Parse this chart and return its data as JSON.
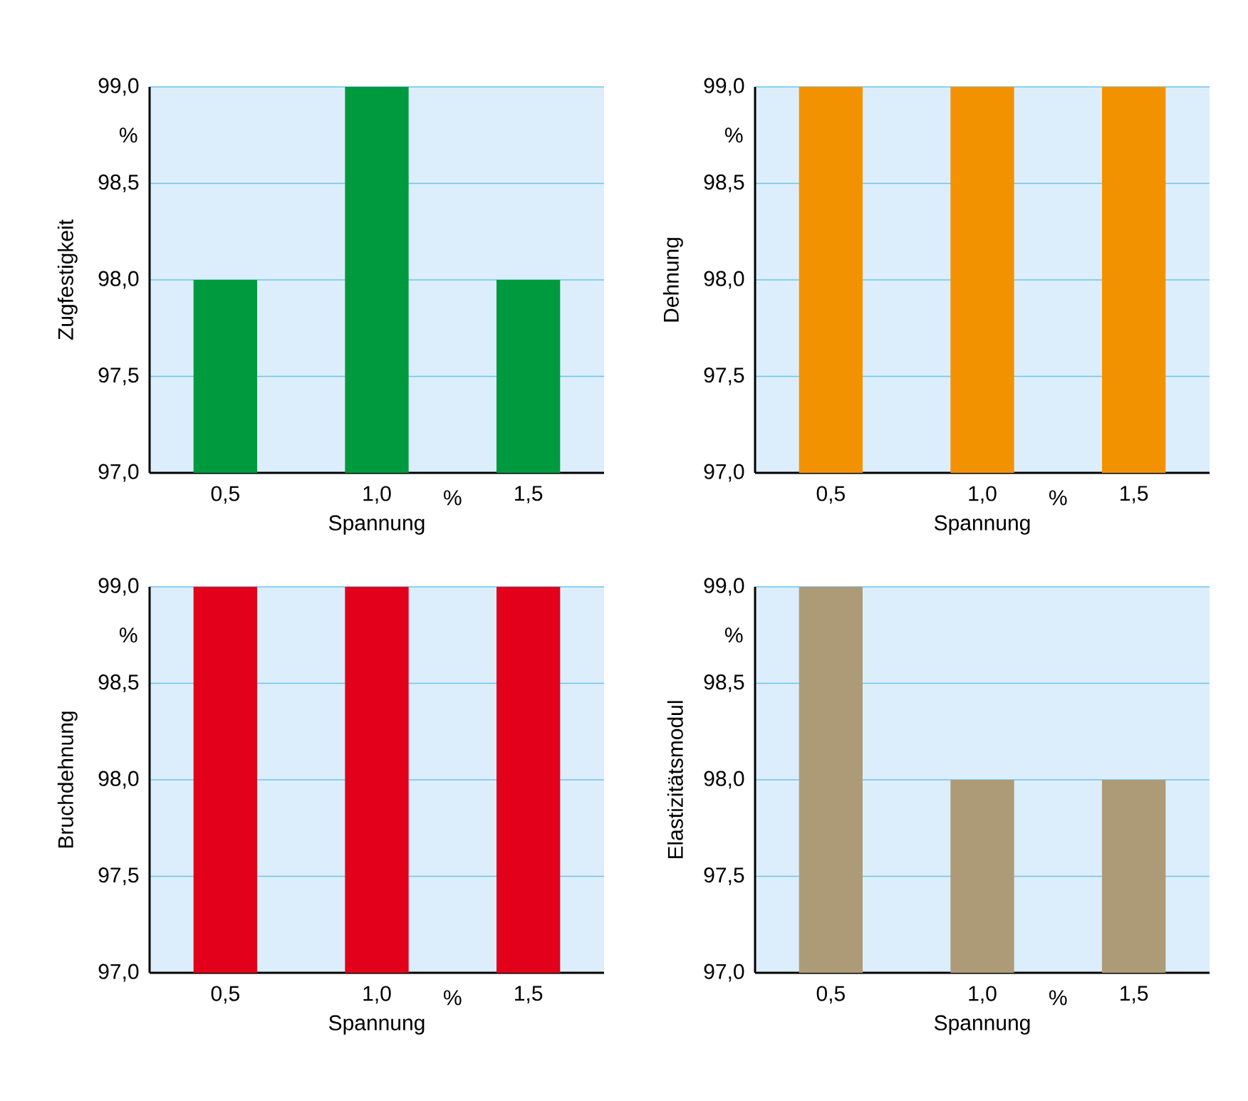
{
  "chart_data": [
    {
      "type": "bar",
      "categories": [
        "0,5",
        "1,0",
        "1,5"
      ],
      "values": [
        98,
        99,
        98
      ],
      "color": "#009a3e",
      "xlabel": "Spannung",
      "ylabel": "Zugfestigkeit",
      "ylim": [
        97,
        99
      ],
      "yticks": [
        {
          "value": 97,
          "label": "97,0"
        },
        {
          "value": 97.5,
          "label": "97,5"
        },
        {
          "value": 98,
          "label": "98,0"
        },
        {
          "value": 98.5,
          "label": "98,5"
        },
        {
          "value": 99,
          "label": "99,0"
        }
      ],
      "grid": "y",
      "annotations": [
        "%",
        "%"
      ]
    },
    {
      "type": "bar",
      "categories": [
        "0,5",
        "1,0",
        "1,5"
      ],
      "values": [
        99,
        99,
        99
      ],
      "color": "#f39200",
      "xlabel": "Spannung",
      "ylabel": "Dehnung",
      "ylim": [
        97,
        99
      ],
      "yticks": [
        {
          "value": 97,
          "label": "97,0"
        },
        {
          "value": 97.5,
          "label": "97,5"
        },
        {
          "value": 98,
          "label": "98,0"
        },
        {
          "value": 98.5,
          "label": "98,5"
        },
        {
          "value": 99,
          "label": "99,0"
        }
      ],
      "grid": "y",
      "annotations": [
        "%",
        "%"
      ]
    },
    {
      "type": "bar",
      "categories": [
        "0,5",
        "1,0",
        "1,5"
      ],
      "values": [
        99,
        99,
        99
      ],
      "color": "#e2001a",
      "xlabel": "Spannung",
      "ylabel": "Bruchdehnung",
      "ylim": [
        97,
        99
      ],
      "yticks": [
        {
          "value": 97,
          "label": "97,0"
        },
        {
          "value": 97.5,
          "label": "97,5"
        },
        {
          "value": 98,
          "label": "98,0"
        },
        {
          "value": 98.5,
          "label": "98,5"
        },
        {
          "value": 99,
          "label": "99,0"
        }
      ],
      "grid": "y",
      "annotations": [
        "%",
        "%"
      ]
    },
    {
      "type": "bar",
      "categories": [
        "0,5",
        "1,0",
        "1,5"
      ],
      "values": [
        99,
        98,
        98
      ],
      "color": "#ad9b78",
      "xlabel": "Spannung",
      "ylabel": "Elastizitätsmodul",
      "ylim": [
        97,
        99
      ],
      "yticks": [
        {
          "value": 97,
          "label": "97,0"
        },
        {
          "value": 97.5,
          "label": "97,5"
        },
        {
          "value": 98,
          "label": "98,0"
        },
        {
          "value": 98.5,
          "label": "98,5"
        },
        {
          "value": 99,
          "label": "99,0"
        }
      ],
      "grid": "y",
      "annotations": [
        "%",
        "%"
      ]
    }
  ]
}
